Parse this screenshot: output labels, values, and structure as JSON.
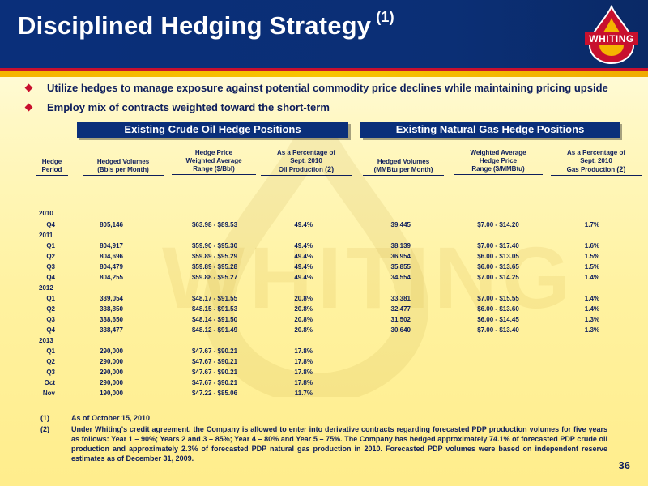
{
  "header": {
    "title": "Disciplined Hedging Strategy",
    "title_sup": "(1)",
    "logo_text": "WHITING"
  },
  "bullets": [
    "Utilize hedges to manage exposure against potential commodity price declines while maintaining pricing upside",
    "Employ mix of contracts weighted toward the short-term"
  ],
  "sections": {
    "oil": "Existing Crude Oil Hedge Positions",
    "gas": "Existing Natural Gas Hedge Positions"
  },
  "columns": {
    "period": [
      "Hedge",
      "Period"
    ],
    "oil_volume": [
      "Hedged Volumes",
      "(Bbls per Month)"
    ],
    "oil_range": [
      "Hedge Price",
      "Weighted Average",
      "Range ($/Bbl)"
    ],
    "oil_pct": [
      "As a Percentage of",
      "Sept. 2010",
      "Oil Production"
    ],
    "oil_pct_note": "(2)",
    "gas_volume": [
      "Hedged Volumes",
      "(MMBtu per Month)"
    ],
    "gas_range": [
      "Weighted Average",
      "Hedge Price",
      "Range ($/MMBtu)"
    ],
    "gas_pct": [
      "As a Percentage of",
      "Sept. 2010",
      "Gas Production"
    ],
    "gas_pct_note": "(2)"
  },
  "table": [
    {
      "year": "2010"
    },
    {
      "period": "Q4",
      "oil_volume": "805,146",
      "oil_range": "$63.98 - $89.53",
      "oil_pct": "49.4%",
      "gas_volume": "39,445",
      "gas_range": "$7.00 - $14.20",
      "gas_pct": "1.7%"
    },
    {
      "year": "2011"
    },
    {
      "period": "Q1",
      "oil_volume": "804,917",
      "oil_range": "$59.90 - $95.30",
      "oil_pct": "49.4%",
      "gas_volume": "38,139",
      "gas_range": "$7.00 - $17.40",
      "gas_pct": "1.6%"
    },
    {
      "period": "Q2",
      "oil_volume": "804,696",
      "oil_range": "$59.89 - $95.29",
      "oil_pct": "49.4%",
      "gas_volume": "36,954",
      "gas_range": "$6.00 - $13.05",
      "gas_pct": "1.5%"
    },
    {
      "period": "Q3",
      "oil_volume": "804,479",
      "oil_range": "$59.89 - $95.28",
      "oil_pct": "49.4%",
      "gas_volume": "35,855",
      "gas_range": "$6.00 - $13.65",
      "gas_pct": "1.5%"
    },
    {
      "period": "Q4",
      "oil_volume": "804,255",
      "oil_range": "$59.88 - $95.27",
      "oil_pct": "49.4%",
      "gas_volume": "34,554",
      "gas_range": "$7.00 - $14.25",
      "gas_pct": "1.4%"
    },
    {
      "year": "2012"
    },
    {
      "period": "Q1",
      "oil_volume": "339,054",
      "oil_range": "$48.17 - $91.55",
      "oil_pct": "20.8%",
      "gas_volume": "33,381",
      "gas_range": "$7.00 - $15.55",
      "gas_pct": "1.4%"
    },
    {
      "period": "Q2",
      "oil_volume": "338,850",
      "oil_range": "$48.15 - $91.53",
      "oil_pct": "20.8%",
      "gas_volume": "32,477",
      "gas_range": "$6.00 - $13.60",
      "gas_pct": "1.4%"
    },
    {
      "period": "Q3",
      "oil_volume": "338,650",
      "oil_range": "$48.14 - $91.50",
      "oil_pct": "20.8%",
      "gas_volume": "31,502",
      "gas_range": "$6.00 - $14.45",
      "gas_pct": "1.3%"
    },
    {
      "period": "Q4",
      "oil_volume": "338,477",
      "oil_range": "$48.12 - $91.49",
      "oil_pct": "20.8%",
      "gas_volume": "30,640",
      "gas_range": "$7.00 - $13.40",
      "gas_pct": "1.3%"
    },
    {
      "year": "2013"
    },
    {
      "period": "Q1",
      "oil_volume": "290,000",
      "oil_range": "$47.67 - $90.21",
      "oil_pct": "17.8%"
    },
    {
      "period": "Q2",
      "oil_volume": "290,000",
      "oil_range": "$47.67 - $90.21",
      "oil_pct": "17.8%"
    },
    {
      "period": "Q3",
      "oil_volume": "290,000",
      "oil_range": "$47.67 - $90.21",
      "oil_pct": "17.8%"
    },
    {
      "period": "Oct",
      "oil_volume": "290,000",
      "oil_range": "$47.67 - $90.21",
      "oil_pct": "17.8%"
    },
    {
      "period": "Nov",
      "oil_volume": "190,000",
      "oil_range": "$47.22 - $85.06",
      "oil_pct": "11.7%"
    }
  ],
  "footnotes": [
    {
      "num": "(1)",
      "text": "As of October 15, 2010"
    },
    {
      "num": "(2)",
      "text": "Under Whiting's credit agreement, the Company is allowed to enter into derivative contracts regarding forecasted PDP production volumes for five years as follows: Year 1 – 90%; Years 2 and 3 – 85%; Year 4 – 80% and Year 5 – 75%. The Company has hedged approximately 74.1% of forecasted PDP crude oil production and approximately 2.3% of forecasted PDP natural gas production in 2010. Forecasted PDP volumes were based on independent reserve estimates as of December 31, 2009."
    }
  ],
  "page_number": "36",
  "watermark": "WHITING",
  "colors": {
    "navy": "#0a2f7a",
    "red": "#c8102e",
    "gold": "#f5b400",
    "text": "#0e1e5c"
  }
}
